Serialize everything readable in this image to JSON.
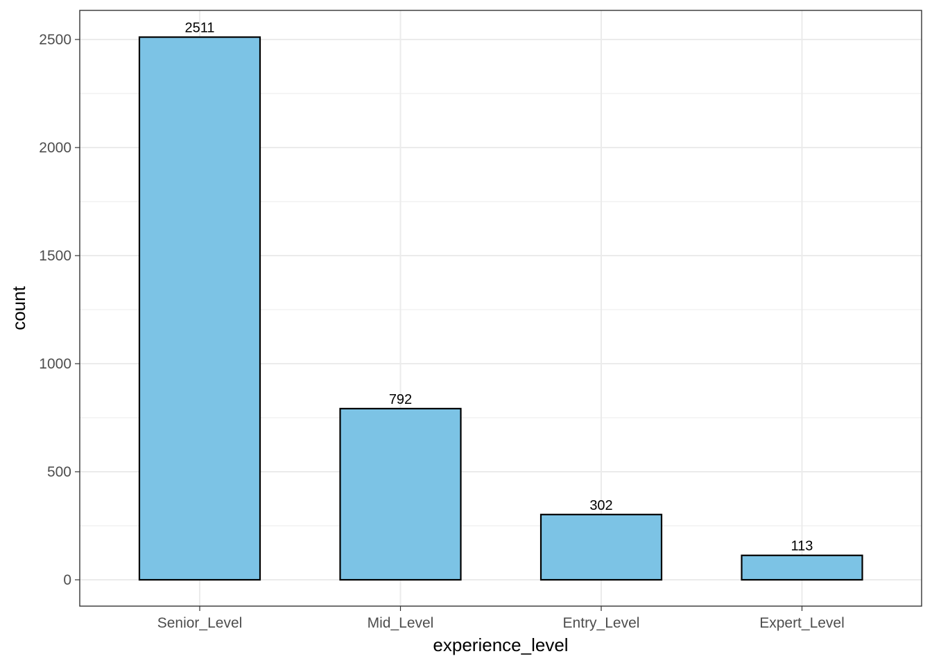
{
  "chart_data": {
    "type": "bar",
    "categories": [
      "Senior_Level",
      "Mid_Level",
      "Entry_Level",
      "Expert_Level"
    ],
    "values": [
      2511,
      792,
      302,
      113
    ],
    "data_labels": [
      "2511",
      "792",
      "302",
      "113"
    ],
    "xlabel": "experience_level",
    "ylabel": "count",
    "ylim": [
      -120,
      2636
    ],
    "yticks": [
      0,
      500,
      1000,
      1500,
      2000,
      2500
    ],
    "ytick_labels": [
      "0",
      "500",
      "1000",
      "1500",
      "2000",
      "2500"
    ],
    "grid": true,
    "bar_fill": "#7cc3e5",
    "bar_outline": "#000000",
    "gridline_color": "#ebebeb"
  }
}
